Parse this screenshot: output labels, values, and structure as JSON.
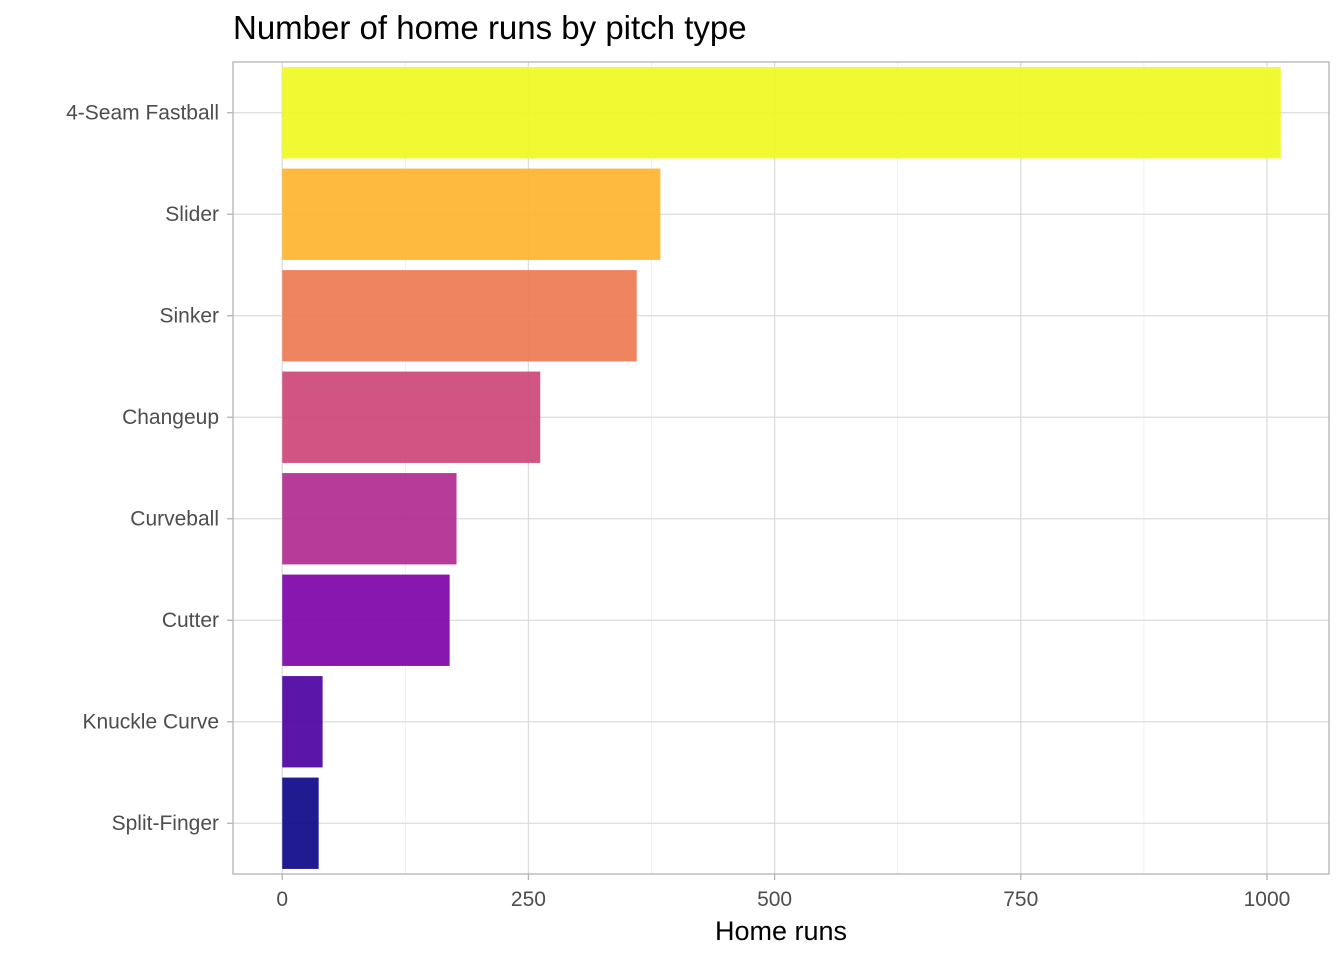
{
  "chart_data": {
    "type": "bar",
    "orientation": "horizontal",
    "title": "Number of home runs by pitch type",
    "xlabel": "Home runs",
    "ylabel": "",
    "xlim": [
      -50,
      1063
    ],
    "xticks": [
      0,
      250,
      500,
      750,
      1000
    ],
    "grid": true,
    "legend": "none",
    "categories": [
      "4-Seam Fastball",
      "Slider",
      "Sinker",
      "Changeup",
      "Curveball",
      "Cutter",
      "Knuckle Curve",
      "Split-Finger"
    ],
    "values": [
      1014,
      384,
      360,
      262,
      177,
      170,
      41,
      37
    ],
    "colors": [
      "#f0f921",
      "#fdb42f",
      "#ed7953",
      "#cc4778",
      "#b12a90",
      "#7e03a8",
      "#4c02a1",
      "#0d0887"
    ],
    "bar_opacity": 0.92
  }
}
